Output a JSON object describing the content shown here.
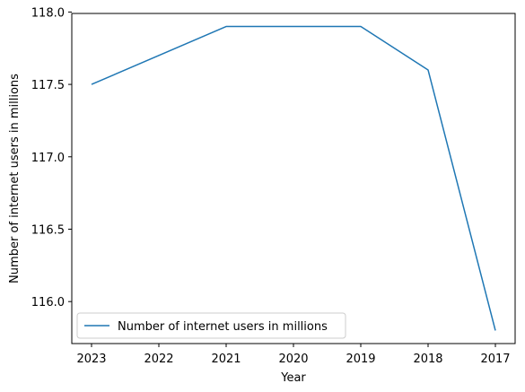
{
  "chart_data": {
    "type": "line",
    "xlabel": "Year",
    "ylabel": "Number of internet users in millions",
    "categories": [
      "2023",
      "2022",
      "2021",
      "2020",
      "2019",
      "2018",
      "2017"
    ],
    "series": [
      {
        "name": "Number of internet users in millions",
        "values": [
          117.5,
          117.7,
          117.9,
          117.9,
          117.9,
          117.6,
          115.8
        ],
        "color": "#1f77b4"
      }
    ],
    "yticks": [
      "116.0",
      "116.5",
      "117.0",
      "117.5",
      "118.0"
    ],
    "ytick_values": [
      116.0,
      116.5,
      117.0,
      117.5,
      118.0
    ],
    "ylim": [
      115.71,
      117.99
    ],
    "grid": false,
    "legend_position": "lower-left"
  }
}
